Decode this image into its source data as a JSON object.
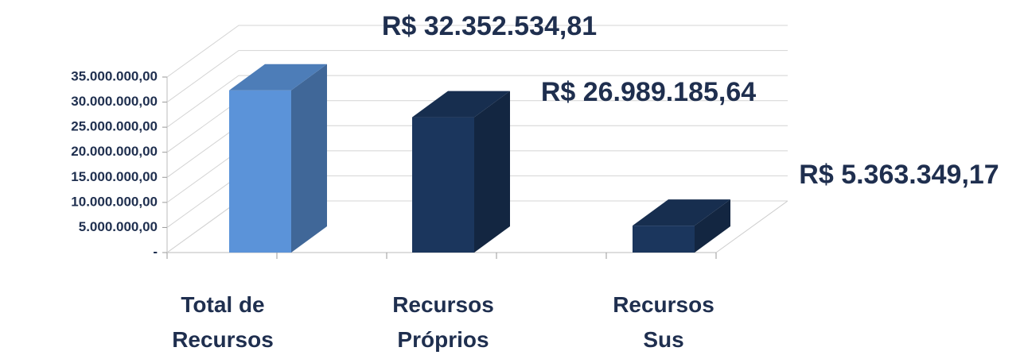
{
  "chart_data": {
    "type": "bar3d",
    "categories": [
      "Total de Recursos",
      "Recursos Próprios",
      "Recursos Sus"
    ],
    "values": [
      32352534.81,
      26989185.64,
      5363349.17
    ],
    "value_labels": [
      "R$ 32.352.534,81",
      "R$ 26.989.185,64",
      "R$ 5.363.349,17"
    ],
    "colors": [
      "#5b93d9",
      "#1b365d",
      "#1b365d"
    ],
    "ylim": [
      0,
      35000000
    ],
    "yticks": [
      {
        "value": 0,
        "label": "-"
      },
      {
        "value": 5000000,
        "label": "5.000.000,00"
      },
      {
        "value": 10000000,
        "label": "10.000.000,00"
      },
      {
        "value": 15000000,
        "label": "15.000.000,00"
      },
      {
        "value": 20000000,
        "label": "20.000.000,00"
      },
      {
        "value": 25000000,
        "label": "25.000.000,00"
      },
      {
        "value": 30000000,
        "label": "30.000.000,00"
      },
      {
        "value": 35000000,
        "label": "35.000.000,00"
      }
    ],
    "grid": true
  }
}
